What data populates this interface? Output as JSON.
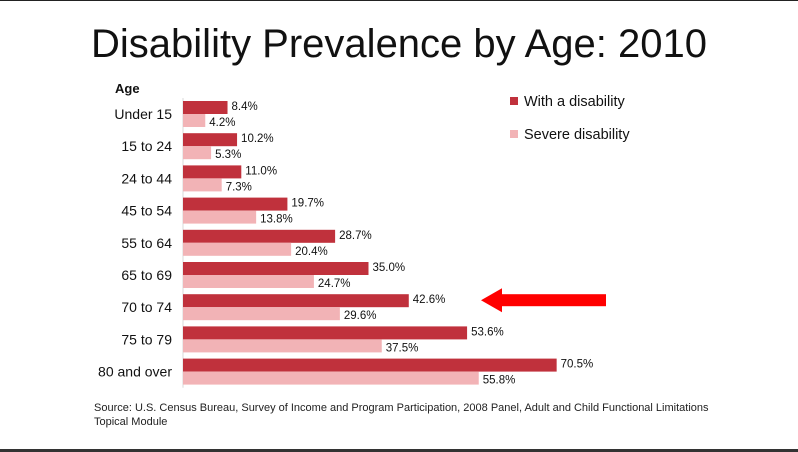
{
  "title": "Disability Prevalence by Age: 2010",
  "source": "Source:  U.S. Census Bureau, Survey of Income and Program Participation, 2008 Panel, Adult and Child Functional Limitations Topical Module",
  "colors": {
    "with_disability": "#c0313c",
    "severe_disability": "#f2b3b6",
    "arrow": "#ff0000"
  },
  "chart_data": {
    "type": "bar",
    "orientation": "horizontal",
    "title": "Disability Prevalence by Age: 2010",
    "ylabel": "Age",
    "categories": [
      "Under 15",
      "15 to 24",
      "24 to 44",
      "45 to 54",
      "55 to 64",
      "65 to 69",
      "70 to 74",
      "75 to 79",
      "80 and over"
    ],
    "series": [
      {
        "name": "With a disability",
        "values": [
          8.4,
          10.2,
          11.0,
          19.7,
          28.7,
          35.0,
          42.6,
          53.6,
          70.5
        ],
        "labels": [
          "8.4%",
          "10.2%",
          "11.0%",
          "19.7%",
          "28.7%",
          "35.0%",
          "42.6%",
          "53.6%",
          "70.5%"
        ]
      },
      {
        "name": "Severe disability",
        "values": [
          4.2,
          5.3,
          7.3,
          13.8,
          20.4,
          24.7,
          29.6,
          37.5,
          55.8
        ],
        "labels": [
          "4.2%",
          "5.3%",
          "7.3%",
          "13.8%",
          "20.4%",
          "24.7%",
          "29.6%",
          "37.5%",
          "55.8%"
        ]
      }
    ],
    "xlim": [
      0,
      75
    ],
    "grid": false,
    "legend": "top-right",
    "annotation": {
      "type": "arrow",
      "points_to": "70 to 74"
    }
  }
}
